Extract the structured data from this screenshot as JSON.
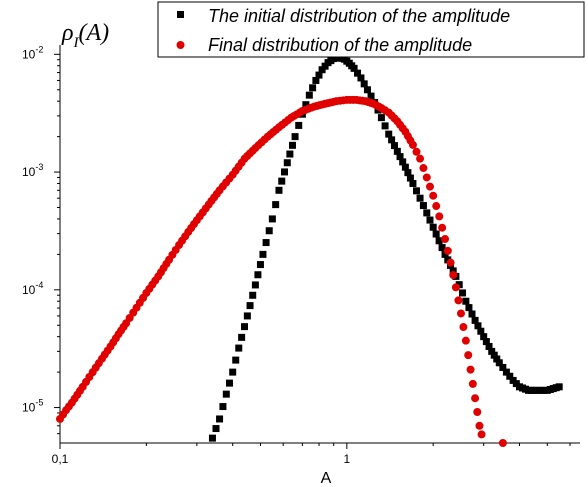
{
  "chart_data": {
    "type": "scatter",
    "title": "",
    "xlabel": "A",
    "ylabel": "ρ_I(A)",
    "ylabel_main": "ρ",
    "ylabel_sub": "I",
    "ylabel_arg": "(A)",
    "xscale": "log",
    "yscale": "log",
    "xlim": [
      0.1,
      6.5
    ],
    "ylim": [
      5e-06,
      0.012
    ],
    "grid": false,
    "legend_position": "top-right",
    "x_ticks": [
      {
        "value": 0.1,
        "label": "0,1"
      },
      {
        "value": 1,
        "label": "1"
      }
    ],
    "y_ticks": [
      {
        "value": 1e-05,
        "base": "10",
        "exp": "-5"
      },
      {
        "value": 0.0001,
        "base": "10",
        "exp": "-4"
      },
      {
        "value": 0.001,
        "base": "10",
        "exp": "-3"
      },
      {
        "value": 0.01,
        "base": "10",
        "exp": "-2"
      }
    ],
    "series": [
      {
        "name": "The initial distribution of the amplitude",
        "color": "#000000",
        "marker": "square",
        "x": [
          0.34,
          0.36,
          0.38,
          0.4,
          0.42,
          0.45,
          0.48,
          0.51,
          0.55,
          0.58,
          0.62,
          0.66,
          0.7,
          0.74,
          0.78,
          0.82,
          0.86,
          0.9,
          0.94,
          0.98,
          1.02,
          1.06,
          1.12,
          1.18,
          1.25,
          1.32,
          1.4,
          1.5,
          1.6,
          1.7,
          1.8,
          1.9,
          2.0,
          2.2,
          2.4,
          2.6,
          2.8,
          3.0,
          3.2,
          3.4,
          3.6,
          3.8,
          4.0,
          4.3,
          4.6,
          5.0,
          5.5
        ],
        "y": [
          5.5e-06,
          8e-06,
          1.3e-05,
          2e-05,
          3.2e-05,
          6e-05,
          0.00011,
          0.0002,
          0.0004,
          0.0007,
          0.0012,
          0.002,
          0.0031,
          0.0045,
          0.006,
          0.0074,
          0.0085,
          0.0092,
          0.0094,
          0.0091,
          0.0084,
          0.0076,
          0.0063,
          0.005,
          0.0039,
          0.0029,
          0.0021,
          0.0015,
          0.0011,
          0.0008,
          0.0006,
          0.00045,
          0.00034,
          0.0002,
          0.00013,
          8e-05,
          5.5e-05,
          4e-05,
          3e-05,
          2.4e-05,
          2e-05,
          1.7e-05,
          1.5e-05,
          1.4e-05,
          1.4e-05,
          1.4e-05,
          1.5e-05
        ]
      },
      {
        "name": "Final distribution of the amplitude",
        "color": "#e00000",
        "marker": "circle",
        "x": [
          0.1,
          0.105,
          0.11,
          0.12,
          0.13,
          0.14,
          0.15,
          0.16,
          0.17,
          0.18,
          0.2,
          0.22,
          0.24,
          0.26,
          0.28,
          0.3,
          0.33,
          0.36,
          0.4,
          0.44,
          0.48,
          0.53,
          0.58,
          0.64,
          0.7,
          0.77,
          0.84,
          0.92,
          1.0,
          1.08,
          1.16,
          1.24,
          1.32,
          1.4,
          1.5,
          1.6,
          1.7,
          1.8,
          1.9,
          2.0,
          2.1,
          2.2,
          2.3,
          2.4,
          2.5,
          2.6,
          2.7,
          2.8,
          2.9,
          3.0,
          3.1,
          3.2,
          3.3,
          3.4,
          3.5
        ],
        "y": [
          8e-06,
          9.5e-06,
          1.1e-05,
          1.5e-05,
          2e-05,
          2.6e-05,
          3.3e-05,
          4.2e-05,
          5.2e-05,
          6.4e-05,
          9.4e-05,
          0.00013,
          0.00018,
          0.00024,
          0.00031,
          0.00039,
          0.00053,
          0.0007,
          0.00095,
          0.0013,
          0.0016,
          0.002,
          0.0024,
          0.0029,
          0.0033,
          0.0036,
          0.0038,
          0.004,
          0.0041,
          0.0041,
          0.004,
          0.0038,
          0.0035,
          0.0032,
          0.0027,
          0.0022,
          0.0017,
          0.0013,
          0.0009,
          0.00063,
          0.00042,
          0.00027,
          0.00017,
          0.000105,
          6.3e-05,
          3.7e-05,
          2.1e-05,
          1.2e-05,
          7e-06,
          5e-06,
          5e-06,
          5e-06,
          5e-06,
          5e-06,
          5e-06
        ]
      }
    ]
  }
}
